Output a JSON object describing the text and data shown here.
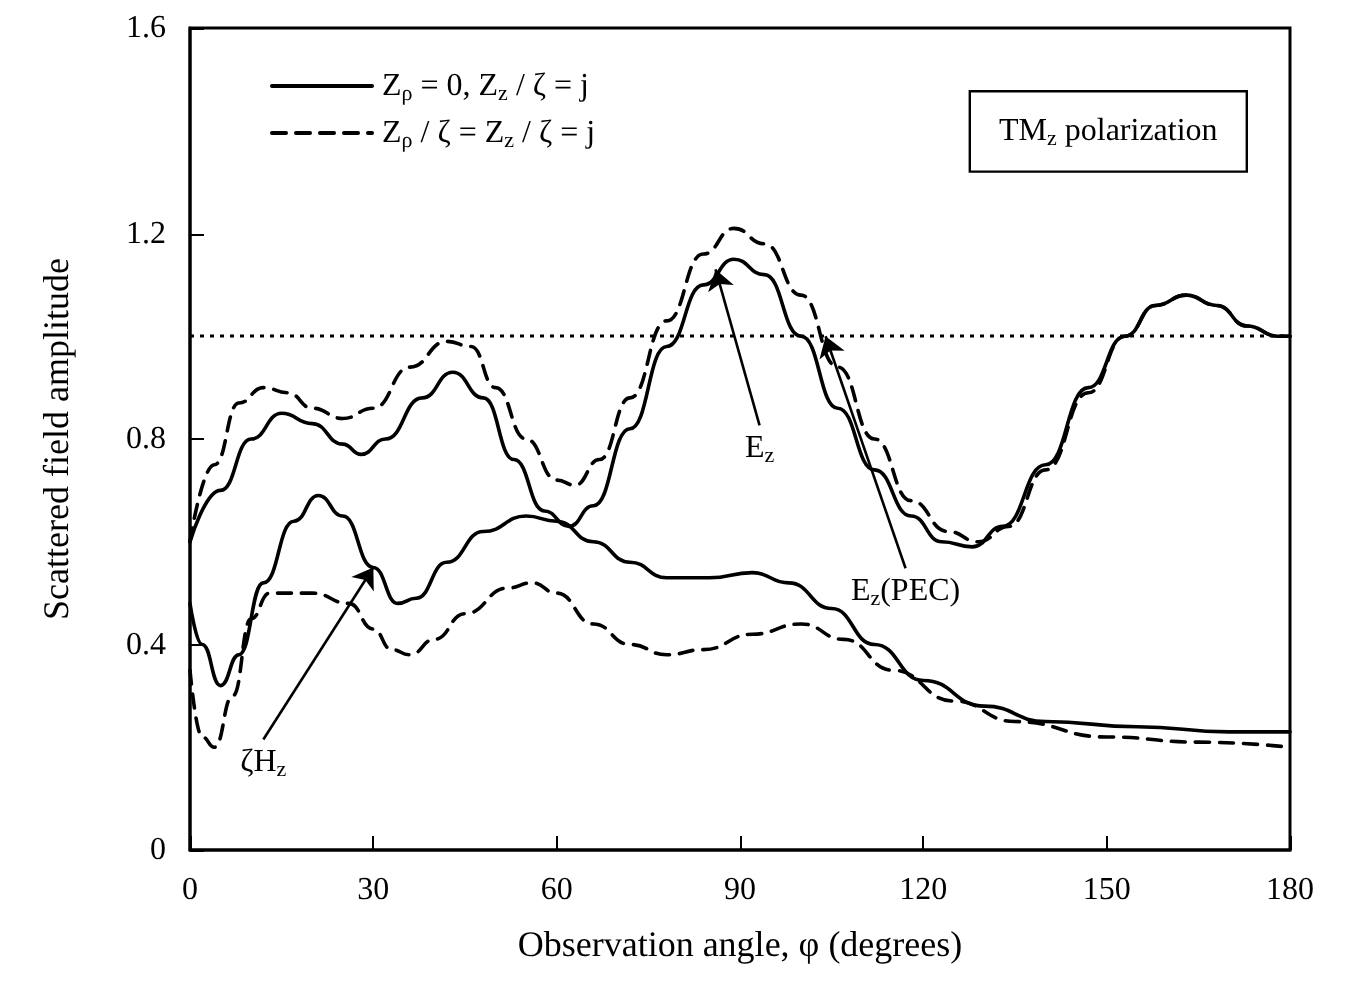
{
  "chart_data": {
    "type": "line",
    "xlabel": "Observation angle, φ (degrees)",
    "ylabel": "Scattered field amplitude",
    "xlim": [
      0,
      180
    ],
    "xticks": [
      0,
      30,
      60,
      90,
      120,
      150,
      180
    ],
    "ylim": [
      0,
      1.6
    ],
    "yticks": [
      0,
      0.4,
      0.8,
      1.2,
      1.6
    ],
    "grid": false,
    "legend": "top left",
    "marker": "none",
    "series": [
      {
        "name": "Z$_{ρ}$ = 0, Z$_{z}$ / ζ = j",
        "color": "#000000",
        "line_style": "solid",
        "x": [
          0,
          5,
          10,
          15,
          20,
          25,
          28,
          32,
          38,
          43,
          48,
          53,
          58,
          62,
          66,
          72,
          78,
          84,
          89,
          94,
          100,
          106,
          112,
          118,
          123,
          128,
          133,
          140,
          147,
          153,
          158,
          163,
          168,
          173,
          178,
          180
        ],
        "values": [
          0.6,
          0.7,
          0.8,
          0.85,
          0.83,
          0.79,
          0.77,
          0.8,
          0.88,
          0.93,
          0.88,
          0.76,
          0.66,
          0.63,
          0.67,
          0.82,
          0.98,
          1.1,
          1.15,
          1.12,
          1.0,
          0.86,
          0.74,
          0.65,
          0.6,
          0.59,
          0.63,
          0.75,
          0.9,
          1.0,
          1.06,
          1.08,
          1.06,
          1.02,
          1.0,
          1.0
        ]
      },
      {
        "name": "Z$_{ρ}$ / ζ = Z$_{z}$ / ζ = j",
        "color": "#000000",
        "line_style": "dashed",
        "x": [
          0,
          4,
          8,
          12,
          16,
          20,
          25,
          30,
          36,
          42,
          46,
          50,
          55,
          60,
          63,
          67,
          72,
          78,
          84,
          89,
          94,
          100,
          106,
          112,
          118,
          124,
          129,
          134,
          140,
          147,
          153,
          158,
          163,
          168,
          173,
          178,
          180
        ],
        "values": [
          0.6,
          0.75,
          0.87,
          0.9,
          0.89,
          0.86,
          0.84,
          0.86,
          0.94,
          0.99,
          0.98,
          0.9,
          0.8,
          0.72,
          0.71,
          0.76,
          0.88,
          1.03,
          1.16,
          1.21,
          1.18,
          1.08,
          0.94,
          0.8,
          0.68,
          0.62,
          0.6,
          0.63,
          0.74,
          0.89,
          1.0,
          1.06,
          1.08,
          1.06,
          1.02,
          1.0,
          1.0
        ]
      },
      {
        "color": "#000000",
        "line_style": "solid",
        "x": [
          0,
          2,
          5,
          8,
          12,
          17,
          21,
          25,
          30,
          34,
          37,
          42,
          48,
          55,
          60,
          66,
          72,
          78,
          85,
          92,
          98,
          105,
          112,
          120,
          130,
          140,
          155,
          170,
          180
        ],
        "values": [
          0.48,
          0.4,
          0.32,
          0.38,
          0.52,
          0.64,
          0.69,
          0.65,
          0.55,
          0.48,
          0.49,
          0.56,
          0.62,
          0.65,
          0.64,
          0.6,
          0.56,
          0.53,
          0.53,
          0.54,
          0.52,
          0.47,
          0.4,
          0.33,
          0.28,
          0.25,
          0.24,
          0.23,
          0.23
        ]
      },
      {
        "color": "#000000",
        "line_style": "dashed",
        "x": [
          0,
          2,
          4,
          7,
          10,
          13,
          20,
          26,
          30,
          33,
          36,
          40,
          45,
          52,
          56,
          60,
          66,
          72,
          78,
          84,
          92,
          100,
          107,
          115,
          125,
          135,
          150,
          165,
          180
        ],
        "values": [
          0.35,
          0.22,
          0.2,
          0.3,
          0.45,
          0.5,
          0.5,
          0.48,
          0.43,
          0.39,
          0.38,
          0.41,
          0.46,
          0.51,
          0.52,
          0.5,
          0.44,
          0.4,
          0.38,
          0.39,
          0.42,
          0.44,
          0.41,
          0.35,
          0.29,
          0.25,
          0.22,
          0.21,
          0.2
        ]
      }
    ],
    "ref_lines": [
      {
        "axis": "y",
        "value": 1,
        "line_style": "dotted",
        "color": "#000000"
      }
    ],
    "annotations": [
      "TM$_{z}$ polarization",
      {
        "text": "E$_{z}$",
        "x": 86,
        "y": 1.13
      },
      {
        "text": "E$_{z}$(PEC)",
        "x": 104,
        "y": 1.0
      },
      {
        "text": "ζH$_{z}$",
        "x": 30,
        "y": 0.55
      }
    ]
  }
}
